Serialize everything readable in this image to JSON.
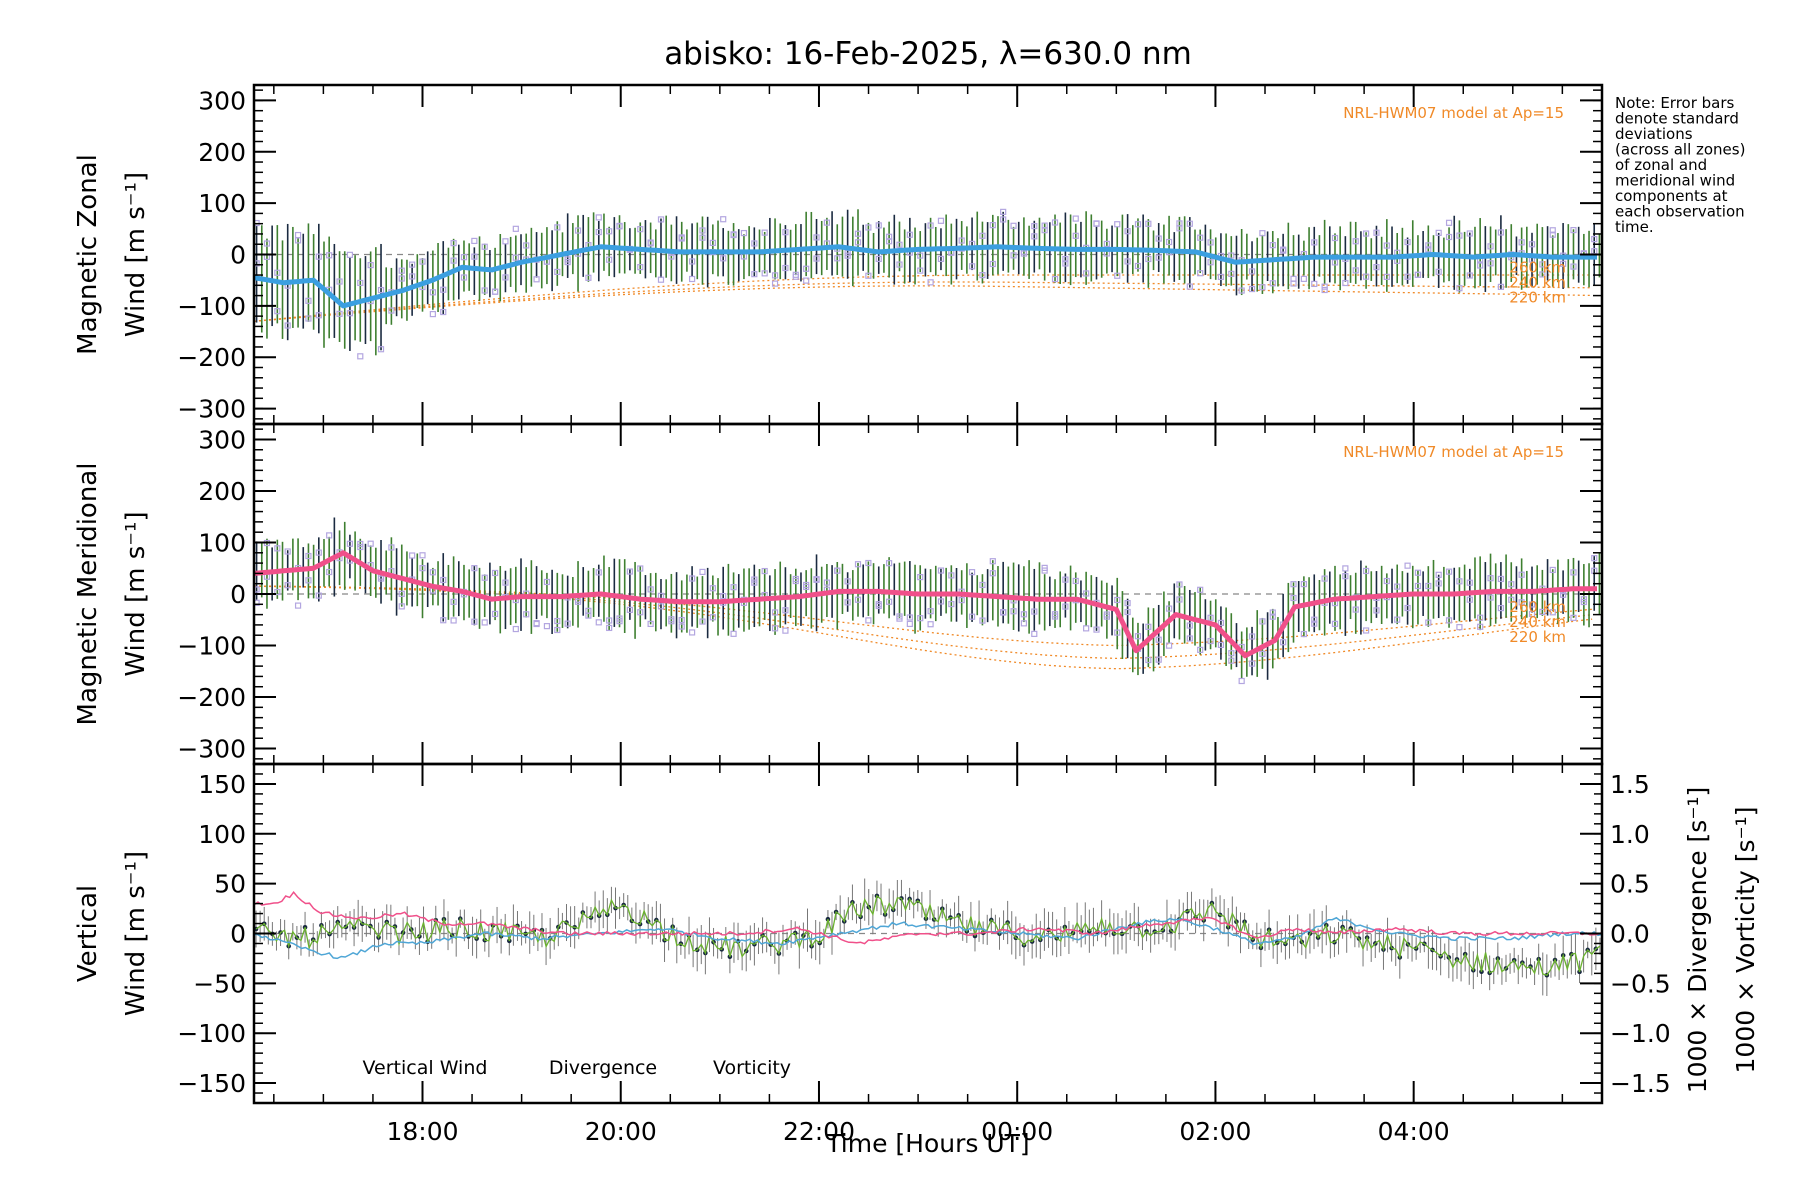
{
  "title": "abisko: 16-Feb-2025, λ=630.0 nm",
  "note_lines": [
    "Note: Error bars",
    "denote standard",
    "deviations",
    "(across all zones)",
    "of zonal and",
    "meridional wind",
    "components at",
    "each observation",
    "time."
  ],
  "xlabel": "Time [Hours UT]",
  "colors": {
    "zonal_mean": "#3b9fe0",
    "meridional_mean": "#f0508a",
    "vertical": "#6ab22e",
    "divergence": "#4fa6d6",
    "vorticity": "#f0508a",
    "model": "#f08a28",
    "scatter": "#b3a6e0",
    "errorbar_green": "#3e7f30",
    "errorbar_dark": "#1a2a40"
  },
  "chart_data": [
    {
      "type": "line",
      "panel": "zonal",
      "ylabel_lines": [
        "Magnetic Zonal",
        "Wind [m s⁻¹]"
      ],
      "ylim": [
        -330,
        330
      ],
      "yticks": [
        300,
        200,
        100,
        0,
        -100,
        -200,
        -300
      ],
      "xlim": [
        16.3,
        29.9
      ],
      "xticks": [
        {
          "value": 18,
          "label": "18:00"
        },
        {
          "value": 20,
          "label": "20:00"
        },
        {
          "value": 22,
          "label": "22:00"
        },
        {
          "value": 24,
          "label": "00:00"
        },
        {
          "value": 26,
          "label": "02:00"
        },
        {
          "value": 28,
          "label": "04:00"
        }
      ],
      "model_label": "NRL-HWM07 model at Ap=15",
      "model_altitude_labels": [
        "260 km",
        "240 km",
        "220 km"
      ],
      "mean_series": {
        "x": [
          16.3,
          16.6,
          16.9,
          17.2,
          17.5,
          17.8,
          18.1,
          18.4,
          18.7,
          19.0,
          19.4,
          19.8,
          20.2,
          20.6,
          21.0,
          21.4,
          21.8,
          22.2,
          22.6,
          23.0,
          23.4,
          23.8,
          24.2,
          24.6,
          25.0,
          25.4,
          25.8,
          26.2,
          26.6,
          27.0,
          27.4,
          27.8,
          28.2,
          28.6,
          29.0,
          29.4,
          29.9
        ],
        "y": [
          -45,
          -55,
          -50,
          -100,
          -85,
          -70,
          -50,
          -25,
          -30,
          -15,
          0,
          15,
          10,
          5,
          5,
          5,
          10,
          15,
          5,
          10,
          12,
          15,
          12,
          10,
          10,
          8,
          5,
          -15,
          -10,
          -5,
          -5,
          -5,
          0,
          -5,
          0,
          -5,
          -5
        ]
      }
    },
    {
      "type": "line",
      "panel": "meridional",
      "ylabel_lines": [
        "Magnetic Meridional",
        "Wind [m s⁻¹]"
      ],
      "ylim": [
        -330,
        330
      ],
      "yticks": [
        300,
        200,
        100,
        0,
        -100,
        -200,
        -300
      ],
      "xlim": [
        16.3,
        29.9
      ],
      "model_label": "NRL-HWM07 model at Ap=15",
      "model_altitude_labels": [
        "260 km",
        "240 km",
        "220 km"
      ],
      "mean_series": {
        "x": [
          16.3,
          16.6,
          16.9,
          17.2,
          17.5,
          17.8,
          18.1,
          18.4,
          18.7,
          19.0,
          19.4,
          19.8,
          20.2,
          20.6,
          21.0,
          21.4,
          21.8,
          22.2,
          22.6,
          23.0,
          23.4,
          23.8,
          24.2,
          24.6,
          25.0,
          25.2,
          25.6,
          26.0,
          26.3,
          26.6,
          26.8,
          27.2,
          27.6,
          28.0,
          28.4,
          28.8,
          29.2,
          29.6,
          29.9
        ],
        "y": [
          40,
          45,
          50,
          80,
          45,
          30,
          15,
          5,
          -10,
          -5,
          -5,
          0,
          -10,
          -15,
          -15,
          -10,
          -5,
          5,
          5,
          0,
          0,
          -5,
          -10,
          -10,
          -30,
          -110,
          -40,
          -60,
          -120,
          -90,
          -25,
          -10,
          -5,
          0,
          0,
          5,
          5,
          10,
          10
        ]
      }
    },
    {
      "type": "line",
      "panel": "vertical",
      "ylabel_lines": [
        "Vertical",
        "Wind [m s⁻¹]"
      ],
      "right_ylabels": [
        "1000 × Divergence [s⁻¹]",
        "1000 × Vorticity [s⁻¹]"
      ],
      "ylim": [
        -170,
        170
      ],
      "yticks": [
        150,
        100,
        50,
        0,
        -50,
        -100,
        -150
      ],
      "right_ylim": [
        -1.7,
        1.7
      ],
      "right_yticks": [
        {
          "value": 1.5,
          "label": "1.5"
        },
        {
          "value": 1.0,
          "label": "1.0"
        },
        {
          "value": 0.5,
          "label": "0.5"
        },
        {
          "value": 0.0,
          "label": "0.0"
        },
        {
          "value": -0.5,
          "label": "−0.5"
        },
        {
          "value": -1.0,
          "label": "−1.0"
        },
        {
          "value": -1.5,
          "label": "−1.5"
        }
      ],
      "xlim": [
        16.3,
        29.9
      ],
      "legend": [
        "Vertical Wind",
        "Divergence",
        "Vorticity"
      ],
      "vertical_series": {
        "x": [
          16.3,
          16.8,
          17.3,
          17.8,
          18.3,
          18.8,
          19.2,
          19.6,
          20.0,
          20.4,
          20.8,
          21.2,
          21.6,
          22.0,
          22.4,
          22.8,
          23.2,
          23.6,
          24.0,
          24.4,
          24.8,
          25.2,
          25.6,
          26.0,
          26.4,
          26.8,
          27.2,
          27.6,
          28.0,
          28.4,
          28.8,
          29.2,
          29.6,
          29.9
        ],
        "y": [
          0,
          -5,
          5,
          0,
          5,
          0,
          -5,
          10,
          30,
          5,
          -10,
          -15,
          -10,
          0,
          25,
          30,
          15,
          5,
          0,
          -5,
          10,
          5,
          10,
          25,
          -5,
          -10,
          0,
          -10,
          -15,
          -25,
          -30,
          -35,
          -30,
          -20
        ]
      },
      "divergence_series": {
        "x": [
          16.3,
          16.8,
          17.2,
          17.6,
          18.0,
          18.6,
          19.2,
          19.8,
          20.4,
          21.0,
          21.6,
          22.2,
          22.8,
          23.4,
          24.0,
          24.6,
          25.2,
          25.6,
          26.0,
          26.4,
          26.8,
          27.2,
          27.8,
          28.4,
          29.0,
          29.5,
          29.9
        ],
        "y": [
          0.0,
          -0.15,
          -0.25,
          -0.1,
          -0.1,
          0.0,
          -0.05,
          0.0,
          0.05,
          -0.05,
          -0.1,
          0.0,
          0.1,
          0.05,
          0.0,
          -0.05,
          0.1,
          0.15,
          0.05,
          -0.1,
          -0.05,
          0.15,
          0.0,
          -0.05,
          -0.05,
          0.0,
          0.0
        ]
      },
      "vorticity_series": {
        "x": [
          16.3,
          16.5,
          16.7,
          17.0,
          17.4,
          17.8,
          18.2,
          18.6,
          19.0,
          19.4,
          20.0,
          20.6,
          21.2,
          21.8,
          22.4,
          23.0,
          23.6,
          24.2,
          24.8,
          25.4,
          26.0,
          26.4,
          26.8,
          27.2,
          27.8,
          28.4,
          29.0,
          29.5,
          29.9
        ],
        "y": [
          0.3,
          0.3,
          0.4,
          0.2,
          0.15,
          0.2,
          0.1,
          0.1,
          0.05,
          0.0,
          0.0,
          0.0,
          0.0,
          0.05,
          -0.1,
          0.0,
          0.0,
          0.05,
          0.0,
          0.1,
          0.15,
          -0.05,
          0.05,
          0.0,
          0.05,
          0.0,
          0.0,
          0.0,
          0.0
        ]
      }
    }
  ]
}
